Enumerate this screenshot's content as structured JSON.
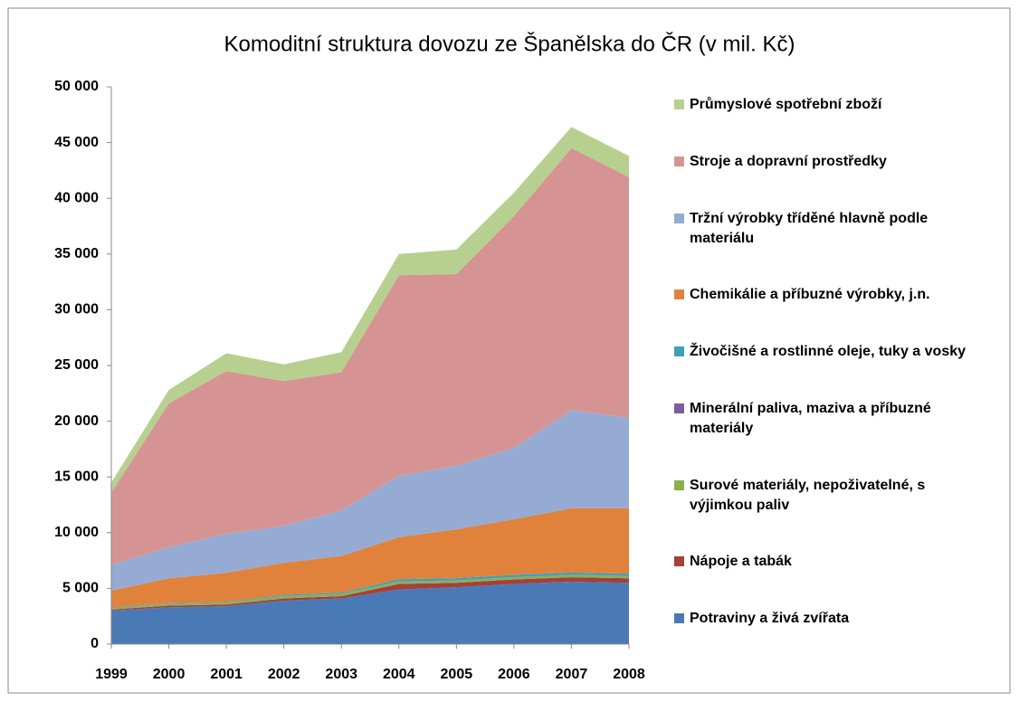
{
  "chart_data": {
    "type": "stacked_area",
    "title": "Komoditní struktura dovozu ze Španělska do ČR (v mil. Kč)",
    "categories": [
      "1999",
      "2000",
      "2001",
      "2002",
      "2003",
      "2004",
      "2005",
      "2006",
      "2007",
      "2008"
    ],
    "ylim": [
      0,
      50000
    ],
    "yticks": [
      0,
      {
        "value": 5000,
        "label": "5 000"
      },
      {
        "value": 10000,
        "label": "10 000"
      },
      {
        "value": 15000,
        "label": "15 000"
      },
      {
        "value": 20000,
        "label": "20 000"
      },
      {
        "value": 25000,
        "label": "25 000"
      },
      {
        "value": 30000,
        "label": "30 000"
      },
      {
        "value": 35000,
        "label": "35 000"
      },
      {
        "value": 40000,
        "label": "40 000"
      },
      {
        "value": 45000,
        "label": "45 000"
      },
      {
        "value": 50000,
        "label": "50 000"
      }
    ],
    "grid": false,
    "legend": "right",
    "series": [
      {
        "name": "Potraviny a živá zvířata",
        "color": "#4a7ab5",
        "values": [
          3000,
          3300,
          3400,
          3900,
          4100,
          4900,
          5100,
          5400,
          5600,
          5500
        ]
      },
      {
        "name": "Nápoje a tabák",
        "color": "#a5403c",
        "values": [
          100,
          150,
          150,
          200,
          200,
          500,
          400,
          400,
          400,
          400
        ]
      },
      {
        "name": "Surové materiály, nepoživatelné, s výjimkou paliv",
        "color": "#8cb04a",
        "values": [
          100,
          150,
          150,
          200,
          200,
          200,
          200,
          200,
          200,
          200
        ]
      },
      {
        "name": "Minerální paliva, maziva a příbuzné materiály",
        "color": "#7a5e9e",
        "values": [
          20,
          20,
          20,
          20,
          20,
          20,
          20,
          20,
          20,
          20
        ]
      },
      {
        "name": "Živočišné a rostlinné oleje, tuky a vosky",
        "color": "#3ea0b8",
        "values": [
          50,
          50,
          50,
          100,
          100,
          200,
          200,
          200,
          200,
          200
        ]
      },
      {
        "name": "Chemikálie a příbuzné výrobky, j.n.",
        "color": "#e0823c",
        "values": [
          1530,
          2230,
          2630,
          2880,
          3280,
          3780,
          4380,
          4980,
          5780,
          5880
        ]
      },
      {
        "name": "Tržní výrobky tříděné hlavně podle materiálu",
        "color": "#95abd4",
        "values": [
          2300,
          2800,
          3500,
          3300,
          4100,
          5500,
          5700,
          6400,
          8800,
          8100
        ]
      },
      {
        "name": "Stroje a dopravní prostředky",
        "color": "#d59493",
        "values": [
          6500,
          12900,
          14600,
          13000,
          12400,
          18000,
          17200,
          20800,
          23500,
          21600
        ]
      },
      {
        "name": "Průmyslové spotřební zboží",
        "color": "#b8d08f",
        "values": [
          900,
          1200,
          1600,
          1500,
          1800,
          1900,
          2200,
          2100,
          1900,
          1900
        ]
      }
    ]
  }
}
